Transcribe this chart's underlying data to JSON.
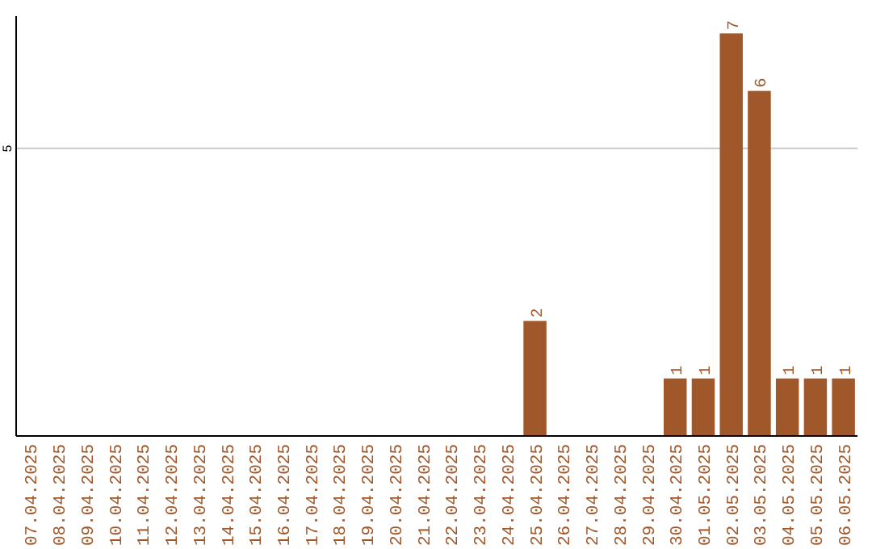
{
  "chart_data": {
    "type": "bar",
    "categories": [
      "07.04.2025",
      "08.04.2025",
      "09.04.2025",
      "10.04.2025",
      "11.04.2025",
      "12.04.2025",
      "13.04.2025",
      "14.04.2025",
      "15.04.2025",
      "16.04.2025",
      "17.04.2025",
      "18.04.2025",
      "19.04.2025",
      "20.04.2025",
      "21.04.2025",
      "22.04.2025",
      "23.04.2025",
      "24.04.2025",
      "25.04.2025",
      "26.04.2025",
      "27.04.2025",
      "28.04.2025",
      "29.04.2025",
      "30.04.2025",
      "01.05.2025",
      "02.05.2025",
      "03.05.2025",
      "04.05.2025",
      "05.05.2025",
      "06.05.2025"
    ],
    "values": [
      null,
      null,
      null,
      null,
      null,
      null,
      null,
      null,
      null,
      null,
      null,
      null,
      null,
      null,
      null,
      null,
      null,
      null,
      2,
      null,
      null,
      null,
      null,
      1,
      1,
      7,
      6,
      1,
      1,
      1
    ],
    "data_labels": true,
    "color": "#a0582a",
    "ylim": [
      0,
      7.3
    ],
    "yticks": [
      5
    ],
    "grid": "y"
  }
}
